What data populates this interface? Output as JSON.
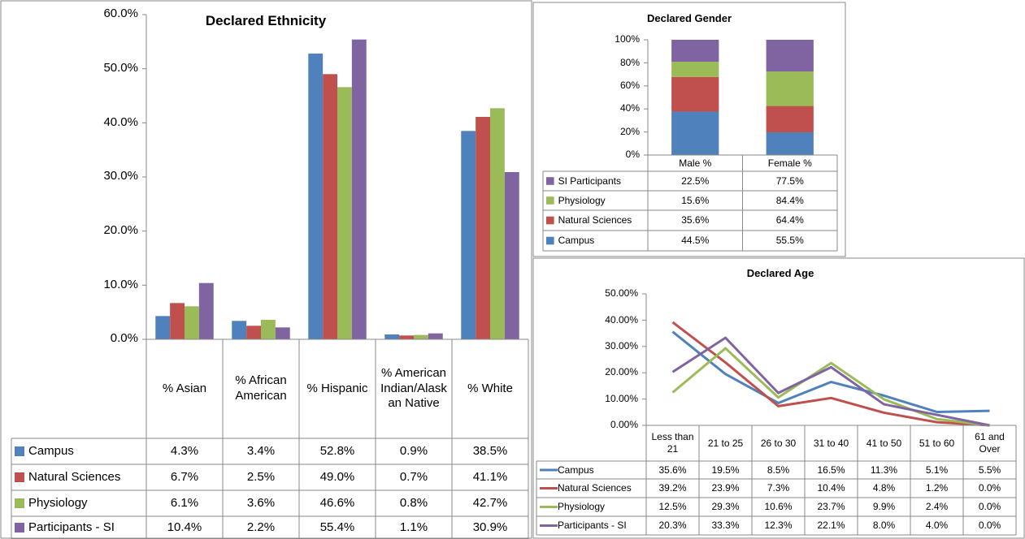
{
  "chart_data": [
    {
      "type": "bar",
      "title": "Declared Ethnicity",
      "categories": [
        "% Asian",
        "% African American",
        "% Hispanic",
        "% American Indian/Alaskan Native",
        "% White"
      ],
      "series": [
        {
          "name": "Campus",
          "color": "#4f81bd",
          "values": [
            4.3,
            3.4,
            52.8,
            0.9,
            38.5
          ],
          "value_labels": [
            "4.3%",
            "3.4%",
            "52.8%",
            "0.9%",
            "38.5%"
          ]
        },
        {
          "name": "Natural Sciences",
          "color": "#c0504d",
          "values": [
            6.7,
            2.5,
            49.0,
            0.7,
            41.1
          ],
          "value_labels": [
            "6.7%",
            "2.5%",
            "49.0%",
            "0.7%",
            "41.1%"
          ]
        },
        {
          "name": "Physiology",
          "color": "#9bbb59",
          "values": [
            6.1,
            3.6,
            46.6,
            0.8,
            42.7
          ],
          "value_labels": [
            "6.1%",
            "3.6%",
            "46.6%",
            "0.8%",
            "42.7%"
          ]
        },
        {
          "name": "Participants - SI",
          "color": "#8064a2",
          "values": [
            10.4,
            2.2,
            55.4,
            1.1,
            30.9
          ],
          "value_labels": [
            "10.4%",
            "2.2%",
            "55.4%",
            "1.1%",
            "30.9%"
          ]
        }
      ],
      "ylim": [
        0,
        60
      ],
      "yticks": [
        {
          "value": 0,
          "label": "0.0%"
        },
        {
          "value": 10,
          "label": "10.0%"
        },
        {
          "value": 20,
          "label": "20.0%"
        },
        {
          "value": 30,
          "label": "30.0%"
        },
        {
          "value": 40,
          "label": "40.0%"
        },
        {
          "value": 50,
          "label": "50.0%"
        },
        {
          "value": 60,
          "label": "60.0%"
        }
      ],
      "grid": false,
      "data_table": true
    },
    {
      "type": "bar",
      "stacked": "percent",
      "title": "Declared Gender",
      "categories": [
        "Male %",
        "Female %"
      ],
      "series": [
        {
          "name": "Campus",
          "color": "#4f81bd",
          "values": [
            44.5,
            55.5
          ],
          "value_labels": [
            "44.5%",
            "55.5%"
          ]
        },
        {
          "name": "Natural Sciences",
          "color": "#c0504d",
          "values": [
            35.6,
            64.4
          ],
          "value_labels": [
            "35.6%",
            "64.4%"
          ]
        },
        {
          "name": "Physiology",
          "color": "#9bbb59",
          "values": [
            15.6,
            84.4
          ],
          "value_labels": [
            "15.6%",
            "84.4%"
          ]
        },
        {
          "name": "SI Participants",
          "color": "#8064a2",
          "values": [
            22.5,
            77.5
          ],
          "value_labels": [
            "22.5%",
            "77.5%"
          ]
        }
      ],
      "ylim": [
        0,
        100
      ],
      "yticks": [
        {
          "value": 0,
          "label": "0%"
        },
        {
          "value": 20,
          "label": "20%"
        },
        {
          "value": 40,
          "label": "40%"
        },
        {
          "value": 60,
          "label": "60%"
        },
        {
          "value": 80,
          "label": "80%"
        },
        {
          "value": 100,
          "label": "100%"
        }
      ],
      "grid": false,
      "data_table": true
    },
    {
      "type": "line",
      "title": "Declared Age",
      "categories": [
        "Less than 21",
        "21 to 25",
        "26 to 30",
        "31 to 40",
        "41 to 50",
        "51 to 60",
        "61 and Over"
      ],
      "series": [
        {
          "name": "Campus",
          "color": "#4f81bd",
          "values": [
            35.6,
            19.5,
            8.5,
            16.5,
            11.3,
            5.1,
            5.5
          ],
          "value_labels": [
            "35.6%",
            "19.5%",
            "8.5%",
            "16.5%",
            "11.3%",
            "5.1%",
            "5.5%"
          ]
        },
        {
          "name": "Natural Sciences",
          "color": "#c0504d",
          "values": [
            39.2,
            23.9,
            7.3,
            10.4,
            4.8,
            1.2,
            0.0
          ],
          "value_labels": [
            "39.2%",
            "23.9%",
            "7.3%",
            "10.4%",
            "4.8%",
            "1.2%",
            "0.0%"
          ]
        },
        {
          "name": "Physiology",
          "color": "#9bbb59",
          "values": [
            12.5,
            29.3,
            10.6,
            23.7,
            9.9,
            2.4,
            0.0
          ],
          "value_labels": [
            "12.5%",
            "29.3%",
            "10.6%",
            "23.7%",
            "9.9%",
            "2.4%",
            "0.0%"
          ]
        },
        {
          "name": "Participants - SI",
          "color": "#8064a2",
          "values": [
            20.3,
            33.3,
            12.3,
            22.1,
            8.0,
            4.0,
            0.0
          ],
          "value_labels": [
            "20.3%",
            "33.3%",
            "12.3%",
            "22.1%",
            "8.0%",
            "4.0%",
            "0.0%"
          ]
        }
      ],
      "ylim": [
        0,
        50
      ],
      "yticks": [
        {
          "value": 0,
          "label": "0.00%"
        },
        {
          "value": 10,
          "label": "10.00%"
        },
        {
          "value": 20,
          "label": "20.00%"
        },
        {
          "value": 30,
          "label": "30.00%"
        },
        {
          "value": 40,
          "label": "40.00%"
        },
        {
          "value": 50,
          "label": "50.00%"
        }
      ],
      "grid": false,
      "data_table": true
    }
  ]
}
